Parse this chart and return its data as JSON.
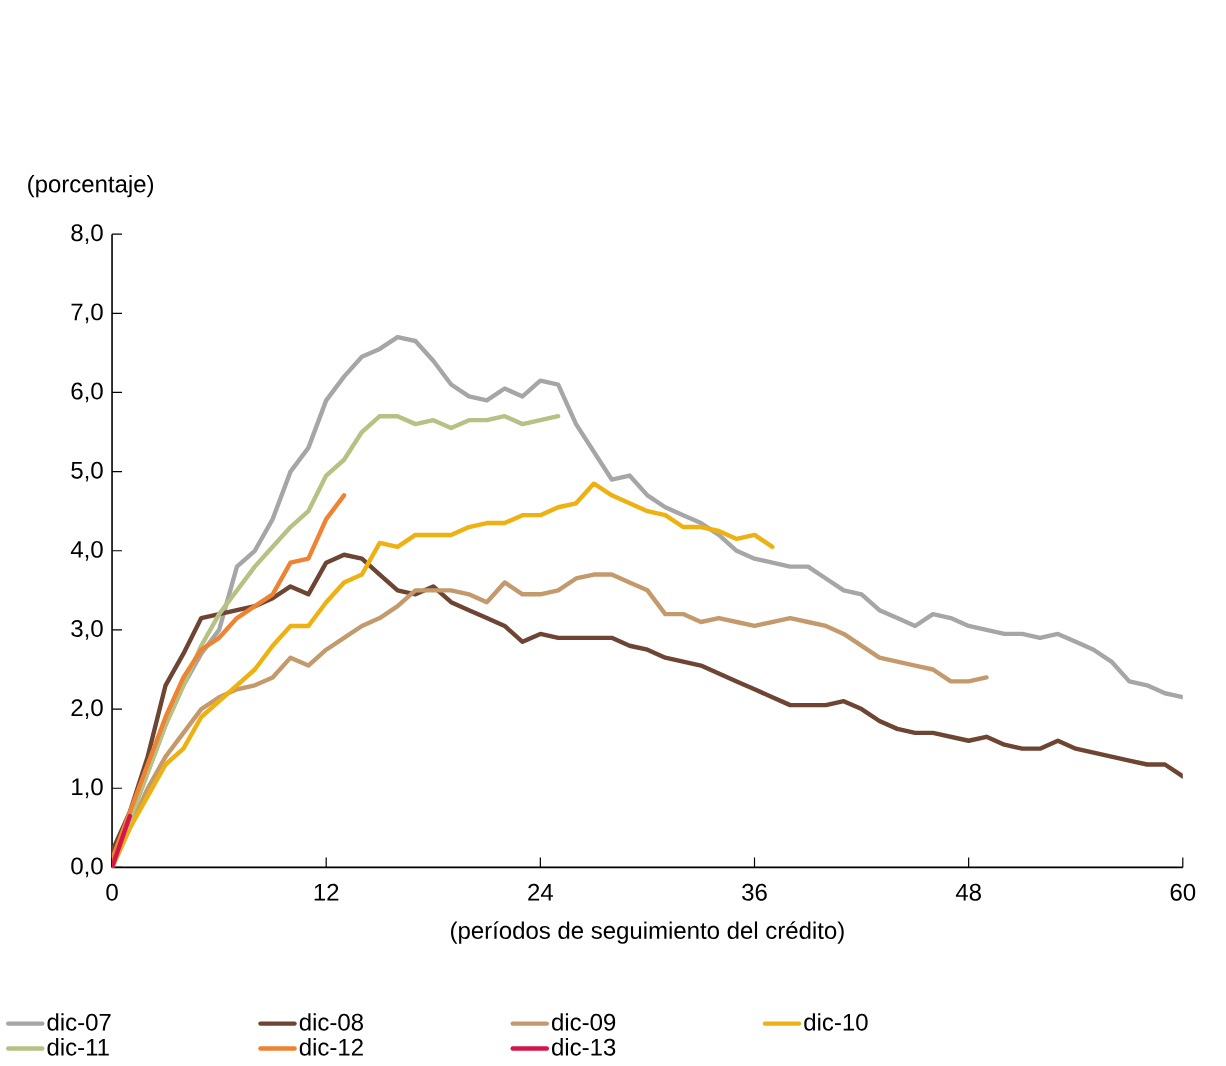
{
  "chart_data": {
    "type": "line",
    "ylabel": "(porcentaje)",
    "xlabel": "(períodos de seguimiento del crédito)",
    "x": [
      0,
      1,
      2,
      3,
      4,
      5,
      6,
      7,
      8,
      9,
      10,
      11,
      12,
      13,
      14,
      15,
      16,
      17,
      18,
      19,
      20,
      21,
      22,
      23,
      24,
      25,
      26,
      27,
      28,
      29,
      30,
      31,
      32,
      33,
      34,
      35,
      36,
      37,
      38,
      39,
      40,
      41,
      42,
      43,
      44,
      45,
      46,
      47,
      48,
      49,
      50,
      51,
      52,
      53,
      54,
      55,
      56,
      57,
      58,
      59,
      60
    ],
    "xlim": [
      0,
      60
    ],
    "xticks": [
      0,
      12,
      24,
      36,
      48,
      60
    ],
    "ylim": [
      0,
      8
    ],
    "yticks": [
      {
        "value": 0,
        "label": "0,0"
      },
      {
        "value": 1,
        "label": "1,0"
      },
      {
        "value": 2,
        "label": "2,0"
      },
      {
        "value": 3,
        "label": "3,0"
      },
      {
        "value": 4,
        "label": "4,0"
      },
      {
        "value": 5,
        "label": "5,0"
      },
      {
        "value": 6,
        "label": "6,0"
      },
      {
        "value": 7,
        "label": "7,0"
      },
      {
        "value": 8,
        "label": "8,0"
      }
    ],
    "grid": false,
    "legend": "bottom",
    "marker": "none",
    "line_style": "solid",
    "series": [
      {
        "name": "dic-07",
        "color": "#a6a6a6",
        "values": [
          0.1,
          0.6,
          1.2,
          1.8,
          2.3,
          2.7,
          3.0,
          3.8,
          4.0,
          4.4,
          5.0,
          5.3,
          5.9,
          6.2,
          6.45,
          6.55,
          6.7,
          6.65,
          6.4,
          6.1,
          5.95,
          5.9,
          6.05,
          5.95,
          6.15,
          6.1,
          5.6,
          5.25,
          4.9,
          4.95,
          4.7,
          4.55,
          4.45,
          4.35,
          4.2,
          4.0,
          3.9,
          3.85,
          3.8,
          3.8,
          3.65,
          3.5,
          3.45,
          3.25,
          3.15,
          3.05,
          3.2,
          3.15,
          3.05,
          3.0,
          2.95,
          2.95,
          2.9,
          2.95,
          2.85,
          2.75,
          2.6,
          2.35,
          2.3,
          2.2,
          2.15
        ]
      },
      {
        "name": "dic-08",
        "color": "#6e4433",
        "values": [
          0.2,
          0.7,
          1.4,
          2.3,
          2.7,
          3.15,
          3.2,
          3.25,
          3.3,
          3.4,
          3.55,
          3.45,
          3.85,
          3.95,
          3.9,
          3.7,
          3.5,
          3.45,
          3.55,
          3.35,
          3.25,
          3.15,
          3.05,
          2.85,
          2.95,
          2.9,
          2.9,
          2.9,
          2.9,
          2.8,
          2.75,
          2.65,
          2.6,
          2.55,
          2.45,
          2.35,
          2.25,
          2.15,
          2.05,
          2.05,
          2.05,
          2.1,
          2.0,
          1.85,
          1.75,
          1.7,
          1.7,
          1.65,
          1.6,
          1.65,
          1.55,
          1.5,
          1.5,
          1.6,
          1.5,
          1.45,
          1.4,
          1.35,
          1.3,
          1.3,
          1.15
        ]
      },
      {
        "name": "dic-09",
        "color": "#c49a6c",
        "values": [
          0.0,
          0.5,
          1.0,
          1.4,
          1.7,
          2.0,
          2.15,
          2.25,
          2.3,
          2.4,
          2.65,
          2.55,
          2.75,
          2.9,
          3.05,
          3.15,
          3.3,
          3.5,
          3.5,
          3.5,
          3.45,
          3.35,
          3.6,
          3.45,
          3.45,
          3.5,
          3.65,
          3.7,
          3.7,
          3.6,
          3.5,
          3.2,
          3.2,
          3.1,
          3.15,
          3.1,
          3.05,
          3.1,
          3.15,
          3.1,
          3.05,
          2.95,
          2.8,
          2.65,
          2.6,
          2.55,
          2.5,
          2.35,
          2.35,
          2.4,
          null,
          null,
          null,
          null,
          null,
          null,
          null,
          null,
          null,
          null,
          null
        ]
      },
      {
        "name": "dic-10",
        "color": "#eeb111",
        "values": [
          0.0,
          0.5,
          0.9,
          1.3,
          1.5,
          1.9,
          2.1,
          2.3,
          2.5,
          2.8,
          3.05,
          3.05,
          3.35,
          3.6,
          3.7,
          4.1,
          4.05,
          4.2,
          4.2,
          4.2,
          4.3,
          4.35,
          4.35,
          4.45,
          4.45,
          4.55,
          4.6,
          4.85,
          4.7,
          4.6,
          4.5,
          4.45,
          4.3,
          4.3,
          4.25,
          4.15,
          4.2,
          4.05,
          null,
          null,
          null,
          null,
          null,
          null,
          null,
          null,
          null,
          null,
          null,
          null,
          null,
          null,
          null,
          null,
          null,
          null,
          null,
          null,
          null,
          null,
          null
        ]
      },
      {
        "name": "dic-11",
        "color": "#b5c283",
        "values": [
          0.1,
          0.6,
          1.2,
          1.8,
          2.3,
          2.8,
          3.2,
          3.5,
          3.8,
          4.05,
          4.3,
          4.5,
          4.95,
          5.15,
          5.5,
          5.7,
          5.7,
          5.6,
          5.65,
          5.55,
          5.65,
          5.65,
          5.7,
          5.6,
          5.65,
          5.7,
          null,
          null,
          null,
          null,
          null,
          null,
          null,
          null,
          null,
          null,
          null,
          null,
          null,
          null,
          null,
          null,
          null,
          null,
          null,
          null,
          null,
          null,
          null,
          null,
          null,
          null,
          null,
          null,
          null,
          null,
          null,
          null,
          null,
          null,
          null
        ]
      },
      {
        "name": "dic-12",
        "color": "#ee8433",
        "values": [
          0.1,
          0.7,
          1.3,
          1.9,
          2.4,
          2.75,
          2.9,
          3.15,
          3.3,
          3.45,
          3.85,
          3.9,
          4.4,
          4.7,
          null,
          null,
          null,
          null,
          null,
          null,
          null,
          null,
          null,
          null,
          null,
          null,
          null,
          null,
          null,
          null,
          null,
          null,
          null,
          null,
          null,
          null,
          null,
          null,
          null,
          null,
          null,
          null,
          null,
          null,
          null,
          null,
          null,
          null,
          null,
          null,
          null,
          null,
          null,
          null,
          null,
          null,
          null,
          null,
          null,
          null,
          null
        ]
      },
      {
        "name": "dic-13",
        "color": "#d5154a",
        "values": [
          0.0,
          0.65,
          null,
          null,
          null,
          null,
          null,
          null,
          null,
          null,
          null,
          null,
          null,
          null,
          null,
          null,
          null,
          null,
          null,
          null,
          null,
          null,
          null,
          null,
          null,
          null,
          null,
          null,
          null,
          null,
          null,
          null,
          null,
          null,
          null,
          null,
          null,
          null,
          null,
          null,
          null,
          null,
          null,
          null,
          null,
          null,
          null,
          null,
          null,
          null,
          null,
          null,
          null,
          null,
          null,
          null,
          null,
          null,
          null,
          null,
          null
        ]
      }
    ]
  }
}
